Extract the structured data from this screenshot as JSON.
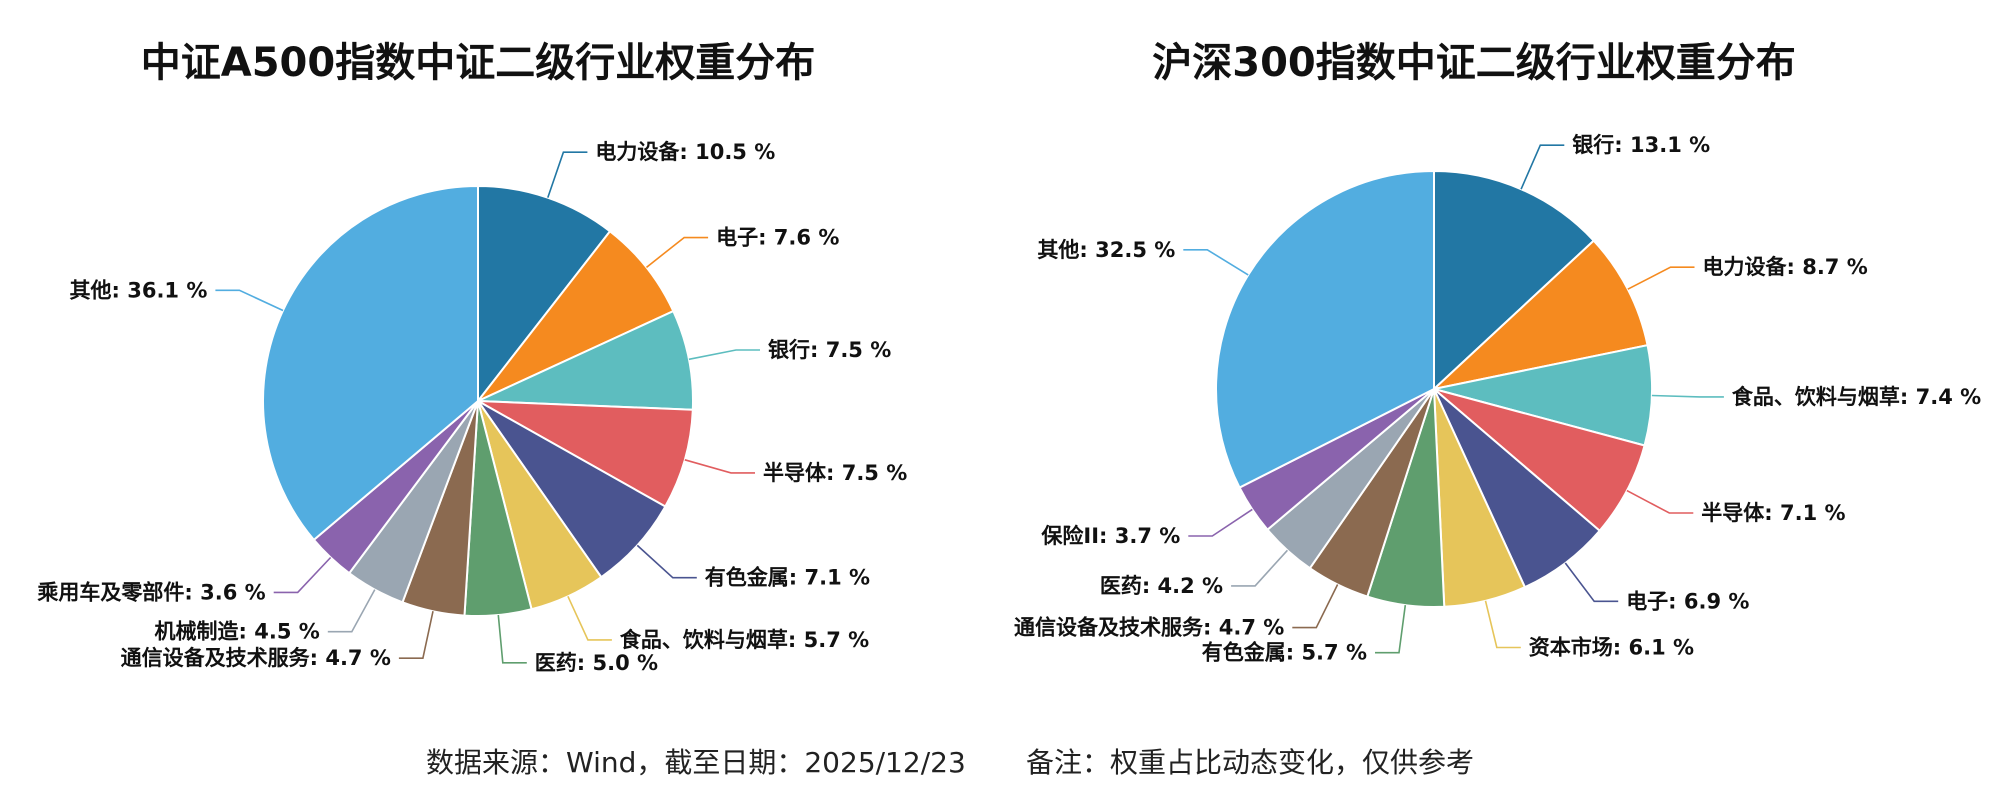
{
  "chart_data": [
    {
      "type": "pie",
      "title": "中证A500指数中证二级行业权重分布",
      "labels": [
        "电力设备",
        "电子",
        "银行",
        "半导体",
        "有色金属",
        "食品、饮料与烟草",
        "医药",
        "通信设备及技术服务",
        "机械制造",
        "乘用车及零部件",
        "其他"
      ],
      "values": [
        10.5,
        7.6,
        7.5,
        7.5,
        7.1,
        5.7,
        5.0,
        4.7,
        4.5,
        3.6,
        36.1
      ],
      "colors": [
        "#2277a4",
        "#f58a1f",
        "#5dbdbf",
        "#e15d5f",
        "#4a5490",
        "#e6c55a",
        "#5f9e6e",
        "#8b6a50",
        "#9aa6b2",
        "#8a63ad",
        "#52ade0"
      ],
      "unit": " %"
    },
    {
      "type": "pie",
      "title": "沪深300指数中证二级行业权重分布",
      "labels": [
        "银行",
        "电力设备",
        "食品、饮料与烟草",
        "半导体",
        "电子",
        "资本市场",
        "有色金属",
        "通信设备及技术服务",
        "医药",
        "保险II",
        "其他"
      ],
      "values": [
        13.1,
        8.7,
        7.4,
        7.1,
        6.9,
        6.1,
        5.7,
        4.7,
        4.2,
        3.7,
        32.5
      ],
      "colors": [
        "#2277a4",
        "#f58a1f",
        "#5dbdbf",
        "#e15d5f",
        "#4a5490",
        "#e6c55a",
        "#5f9e6e",
        "#8b6a50",
        "#9aa6b2",
        "#8a63ad",
        "#52ade0"
      ],
      "unit": " %"
    }
  ],
  "footer": {
    "source": "数据来源：Wind，截至日期：2025/12/23",
    "note": "备注：权重占比动态变化，仅供参考"
  }
}
